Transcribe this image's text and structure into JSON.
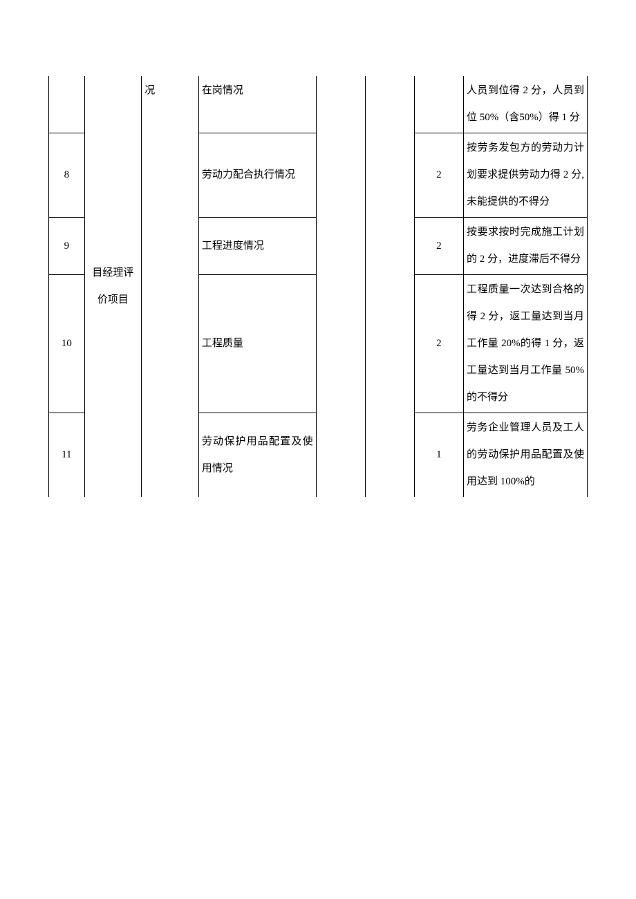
{
  "rows": [
    {
      "num": "",
      "col2": "目经理评价项目",
      "col3": "况",
      "col4": "在岗情况",
      "score": "",
      "desc": "人员到位得 2 分，人员到位 50%（含50%）得 1 分"
    },
    {
      "num": "8",
      "col4": "劳动力配合执行情况",
      "score": "2",
      "desc": "按劳务发包方的劳动力计划要求提供劳动力得 2 分,未能提供的不得分"
    },
    {
      "num": "9",
      "col4": "工程进度情况",
      "score": "2",
      "desc": "按要求按时完成施工计划的 2 分，进度滞后不得分"
    },
    {
      "num": "10",
      "col4": "工程质量",
      "score": "2",
      "desc": "工程质量一次达到合格的得 2 分，返工量达到当月工作量 20%的得 1 分，返工量达到当月工作量 50%的不得分"
    },
    {
      "num": "11",
      "col4": "劳动保护用品配置及使用情况",
      "score": "1",
      "desc": "劳务企业管理人员及工人的劳动保护用品配置及使用达到 100%的"
    }
  ]
}
